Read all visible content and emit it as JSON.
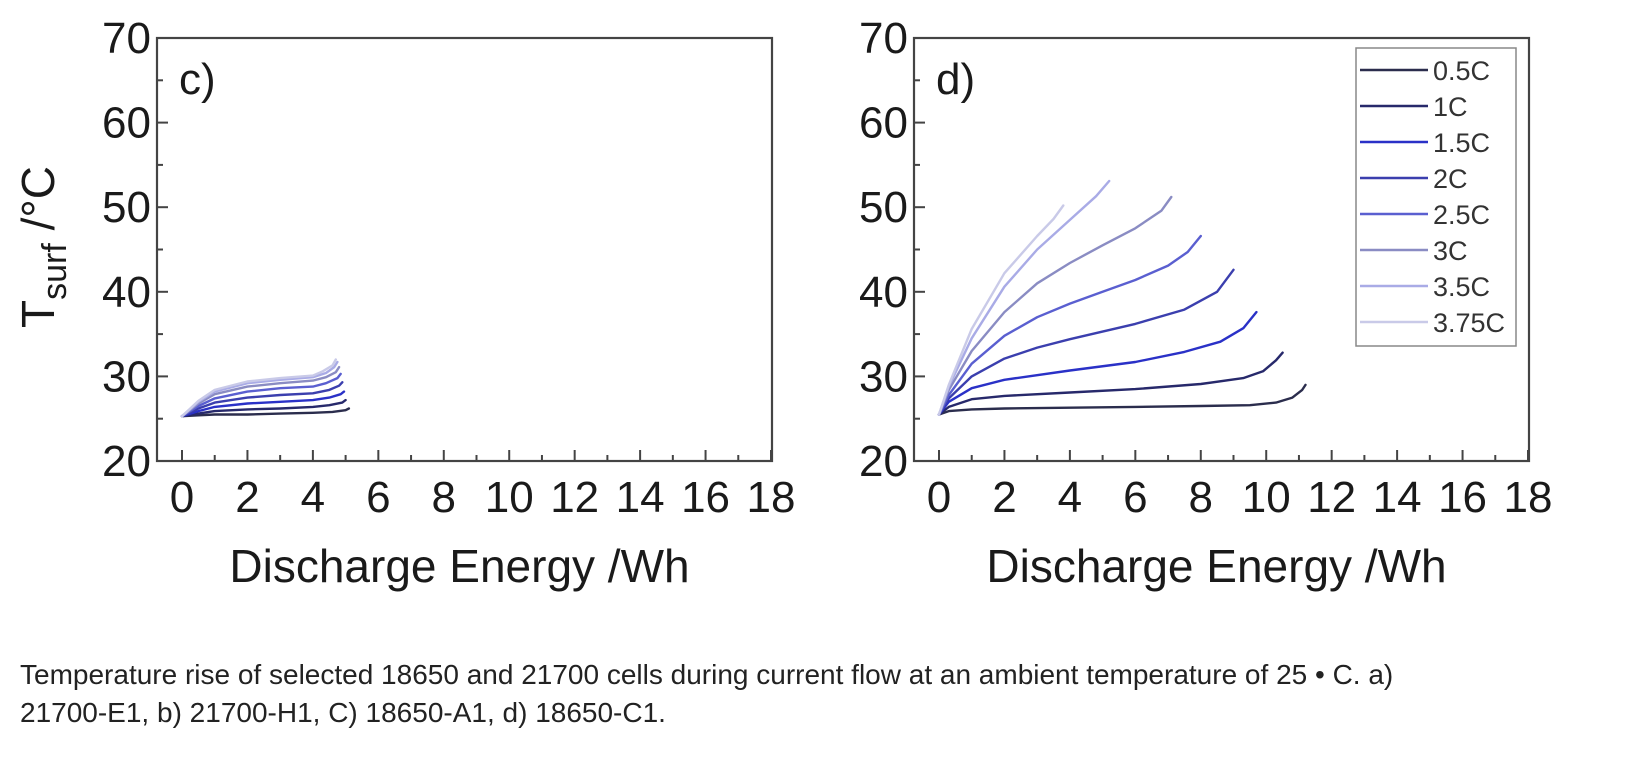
{
  "chart_data": [
    {
      "type": "line",
      "panel_label": "c)",
      "xlabel": "Discharge Energy /Wh",
      "ylabel_main": "T",
      "ylabel_sub": "surf",
      "ylabel_unit": " /°C",
      "xlim": [
        0,
        18
      ],
      "ylim": [
        20,
        70
      ],
      "xticks": [
        0,
        2,
        4,
        6,
        8,
        10,
        12,
        14,
        16,
        18
      ],
      "yticks": [
        20,
        30,
        40,
        50,
        60,
        70
      ],
      "series": [
        {
          "name": "0.5C",
          "color": "#2b2d4d",
          "x": [
            0,
            0.5,
            1,
            2,
            3,
            4,
            4.6,
            5.0,
            5.1
          ],
          "y": [
            25.3,
            25.4,
            25.5,
            25.5,
            25.6,
            25.7,
            25.8,
            26.0,
            26.2
          ]
        },
        {
          "name": "1C",
          "color": "#27296b",
          "x": [
            0,
            0.5,
            1,
            2,
            3,
            4,
            4.5,
            4.9,
            5.0
          ],
          "y": [
            25.3,
            25.6,
            25.9,
            26.1,
            26.2,
            26.4,
            26.6,
            26.9,
            27.2
          ]
        },
        {
          "name": "1.5C",
          "color": "#2a31c7",
          "x": [
            0,
            0.5,
            1,
            2,
            3,
            4,
            4.5,
            4.85,
            4.95
          ],
          "y": [
            25.3,
            25.9,
            26.4,
            26.8,
            27.0,
            27.2,
            27.5,
            27.9,
            28.2
          ]
        },
        {
          "name": "2C",
          "color": "#3b3fae",
          "x": [
            0,
            0.5,
            1,
            2,
            3,
            4,
            4.5,
            4.8,
            4.9
          ],
          "y": [
            25.3,
            26.2,
            26.9,
            27.5,
            27.8,
            28.0,
            28.4,
            28.9,
            29.3
          ]
        },
        {
          "name": "2.5C",
          "color": "#5a5fd0",
          "x": [
            0,
            0.5,
            1,
            2,
            3,
            4,
            4.4,
            4.75,
            4.85
          ],
          "y": [
            25.3,
            26.5,
            27.4,
            28.2,
            28.6,
            28.8,
            29.2,
            29.8,
            30.3
          ]
        },
        {
          "name": "3C",
          "color": "#8a8cc3",
          "x": [
            0,
            0.5,
            1,
            2,
            3,
            4,
            4.4,
            4.7,
            4.8
          ],
          "y": [
            25.3,
            26.8,
            27.9,
            28.8,
            29.2,
            29.5,
            29.9,
            30.5,
            31.1
          ]
        },
        {
          "name": "3.5C",
          "color": "#a9abe6",
          "x": [
            0,
            0.5,
            1,
            2,
            3,
            4,
            4.4,
            4.65,
            4.75
          ],
          "y": [
            25.3,
            27.0,
            28.2,
            29.2,
            29.6,
            29.9,
            30.4,
            31.1,
            31.7
          ]
        },
        {
          "name": "3.75C",
          "color": "#c9cae8",
          "x": [
            0,
            0.5,
            1,
            2,
            3,
            4,
            4.3,
            4.6,
            4.7
          ],
          "y": [
            25.3,
            27.1,
            28.4,
            29.4,
            29.8,
            30.1,
            30.6,
            31.3,
            32.0
          ]
        }
      ]
    },
    {
      "type": "line",
      "panel_label": "d)",
      "xlabel": "Discharge Energy /Wh",
      "xlim": [
        0,
        18
      ],
      "ylim": [
        20,
        70
      ],
      "xticks": [
        0,
        2,
        4,
        6,
        8,
        10,
        12,
        14,
        16,
        18
      ],
      "yticks": [
        20,
        30,
        40,
        50,
        60,
        70
      ],
      "legend_position": "top-right",
      "series": [
        {
          "name": "0.5C",
          "color": "#2b2d4d",
          "x": [
            0,
            0.3,
            1,
            2,
            4,
            6,
            8,
            9.5,
            10.3,
            10.8,
            11.1,
            11.2
          ],
          "y": [
            25.5,
            25.9,
            26.1,
            26.2,
            26.3,
            26.4,
            26.5,
            26.6,
            26.9,
            27.5,
            28.4,
            29.0
          ]
        },
        {
          "name": "1C",
          "color": "#27296b",
          "x": [
            0,
            0.3,
            1,
            2,
            4,
            6,
            8,
            9.3,
            9.9,
            10.3,
            10.5
          ],
          "y": [
            25.5,
            26.4,
            27.3,
            27.7,
            28.1,
            28.5,
            29.1,
            29.8,
            30.6,
            31.9,
            32.8
          ]
        },
        {
          "name": "1.5C",
          "color": "#2a31c7",
          "x": [
            0,
            0.3,
            1,
            2,
            4,
            6,
            7.5,
            8.6,
            9.3,
            9.7
          ],
          "y": [
            25.5,
            27.0,
            28.6,
            29.6,
            30.7,
            31.7,
            32.9,
            34.1,
            35.7,
            37.6
          ]
        },
        {
          "name": "2C",
          "color": "#3b3fae",
          "x": [
            0,
            0.3,
            1,
            2,
            3,
            4,
            6,
            7.5,
            8.5,
            9.0
          ],
          "y": [
            25.5,
            27.4,
            30.0,
            32.1,
            33.4,
            34.4,
            36.2,
            37.9,
            40.0,
            42.6
          ]
        },
        {
          "name": "2.5C",
          "color": "#5a5fd0",
          "x": [
            0,
            0.3,
            1,
            2,
            3,
            4,
            5,
            6,
            7,
            7.6,
            8.0
          ],
          "y": [
            25.5,
            27.8,
            31.5,
            34.8,
            37.0,
            38.6,
            40.0,
            41.4,
            43.1,
            44.7,
            46.6
          ]
        },
        {
          "name": "3C",
          "color": "#8a8cc3",
          "x": [
            0,
            0.3,
            1,
            2,
            3,
            4,
            5,
            6,
            6.8,
            7.1
          ],
          "y": [
            25.5,
            28.4,
            33.0,
            37.6,
            41.0,
            43.4,
            45.5,
            47.5,
            49.6,
            51.2
          ]
        },
        {
          "name": "3.5C",
          "color": "#a9abe6",
          "x": [
            0,
            0.3,
            1,
            2,
            3,
            4,
            4.8,
            5.2
          ],
          "y": [
            25.5,
            28.8,
            34.5,
            40.6,
            45.0,
            48.5,
            51.3,
            53.1
          ]
        },
        {
          "name": "3.75C",
          "color": "#c9cae8",
          "x": [
            0,
            0.3,
            1,
            2,
            3,
            3.5,
            3.8
          ],
          "y": [
            25.5,
            29.0,
            35.6,
            42.2,
            46.6,
            48.6,
            50.2
          ]
        }
      ]
    }
  ],
  "caption_line1": "Temperature rise of selected 18650 and 21700 cells during current flow at an ambient temperature of 25 • C. a)",
  "caption_line2": "21700-E1, b) 21700-H1, C) 18650-A1, d) 18650-C1."
}
